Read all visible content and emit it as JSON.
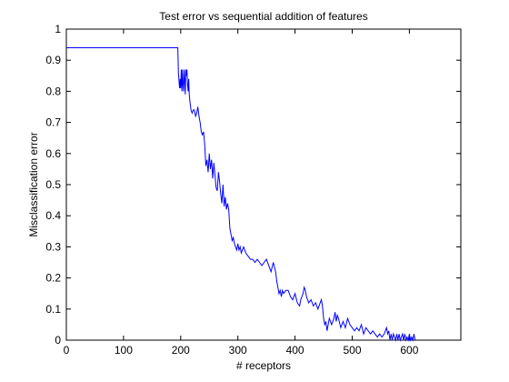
{
  "chart_data": {
    "type": "line",
    "title": "Test error vs sequential addition of features",
    "xlabel": "# receptors",
    "ylabel": "Misclassification error",
    "xlim": [
      0,
      690
    ],
    "ylim": [
      0,
      1
    ],
    "xticks": [
      0,
      100,
      200,
      300,
      400,
      500,
      600
    ],
    "yticks": [
      0,
      0.1,
      0.2,
      0.3,
      0.4,
      0.5,
      0.6,
      0.7,
      0.8,
      0.9,
      1
    ],
    "ytick_labels": [
      "0",
      "0.1",
      "0.2",
      "0.3",
      "0.4",
      "0.5",
      "0.6",
      "0.7",
      "0.8",
      "0.9",
      "1"
    ],
    "grid": false,
    "line_color": "#0000ff",
    "series": [
      {
        "x": [
          0,
          195,
          196,
          198,
          199,
          200,
          201,
          202,
          203,
          204,
          205,
          206,
          207,
          208,
          209,
          210,
          211,
          212,
          213,
          214,
          215,
          216,
          218,
          220,
          222,
          224,
          226,
          228,
          230,
          232,
          234,
          236,
          238,
          240,
          242,
          244,
          246,
          248,
          250,
          252,
          254,
          256,
          258,
          260,
          262,
          264,
          266,
          268,
          270,
          272,
          274,
          276,
          278,
          280,
          282,
          284,
          286,
          288,
          290,
          292,
          294,
          296,
          298,
          300,
          302,
          304,
          306,
          308,
          310,
          314,
          318,
          322,
          326,
          330,
          334,
          338,
          342,
          346,
          350,
          354,
          358,
          362,
          366,
          368,
          370,
          372,
          374,
          376,
          378,
          380,
          384,
          388,
          392,
          396,
          400,
          404,
          408,
          410,
          412,
          414,
          416,
          418,
          420,
          424,
          428,
          432,
          436,
          440,
          444,
          446,
          448,
          450,
          452,
          454,
          456,
          458,
          460,
          464,
          468,
          470,
          472,
          474,
          476,
          480,
          484,
          488,
          492,
          496,
          500,
          504,
          508,
          512,
          516,
          520,
          524,
          528,
          532,
          536,
          540,
          544,
          548,
          552,
          556,
          558,
          560,
          562,
          564,
          566,
          568,
          570,
          572,
          574,
          576,
          578,
          580,
          582,
          584,
          586,
          588,
          590,
          592,
          594,
          596,
          598,
          600,
          602,
          604,
          606,
          608,
          610
        ],
        "y": [
          0.94,
          0.94,
          0.86,
          0.81,
          0.84,
          0.81,
          0.87,
          0.8,
          0.87,
          0.82,
          0.8,
          0.87,
          0.84,
          0.79,
          0.87,
          0.85,
          0.87,
          0.82,
          0.8,
          0.84,
          0.79,
          0.77,
          0.74,
          0.73,
          0.74,
          0.74,
          0.72,
          0.73,
          0.75,
          0.72,
          0.7,
          0.67,
          0.66,
          0.67,
          0.63,
          0.56,
          0.58,
          0.54,
          0.6,
          0.55,
          0.58,
          0.52,
          0.57,
          0.53,
          0.49,
          0.48,
          0.54,
          0.51,
          0.47,
          0.44,
          0.5,
          0.43,
          0.46,
          0.42,
          0.44,
          0.42,
          0.36,
          0.34,
          0.32,
          0.33,
          0.31,
          0.3,
          0.29,
          0.31,
          0.29,
          0.3,
          0.28,
          0.29,
          0.3,
          0.28,
          0.27,
          0.26,
          0.26,
          0.25,
          0.26,
          0.25,
          0.24,
          0.25,
          0.26,
          0.24,
          0.22,
          0.25,
          0.22,
          0.19,
          0.17,
          0.15,
          0.16,
          0.14,
          0.16,
          0.15,
          0.16,
          0.16,
          0.14,
          0.13,
          0.15,
          0.12,
          0.11,
          0.13,
          0.14,
          0.15,
          0.17,
          0.16,
          0.14,
          0.12,
          0.13,
          0.11,
          0.12,
          0.1,
          0.12,
          0.13,
          0.11,
          0.07,
          0.05,
          0.06,
          0.03,
          0.05,
          0.07,
          0.05,
          0.07,
          0.09,
          0.06,
          0.08,
          0.07,
          0.04,
          0.06,
          0.04,
          0.07,
          0.05,
          0.04,
          0.03,
          0.04,
          0.03,
          0.05,
          0.02,
          0.04,
          0.03,
          0.02,
          0.03,
          0.02,
          0.01,
          0.02,
          0.01,
          0.02,
          0.03,
          0.04,
          0.02,
          0.03,
          0.0,
          0.02,
          0.0,
          0.02,
          0.01,
          0.0,
          0.02,
          0.0,
          0.02,
          0.0,
          0.01,
          0.02,
          0.0,
          0.02,
          0.0,
          0.01,
          0.0,
          0.02,
          0.0,
          0.01,
          0.0,
          0.02,
          0.0
        ]
      }
    ]
  }
}
